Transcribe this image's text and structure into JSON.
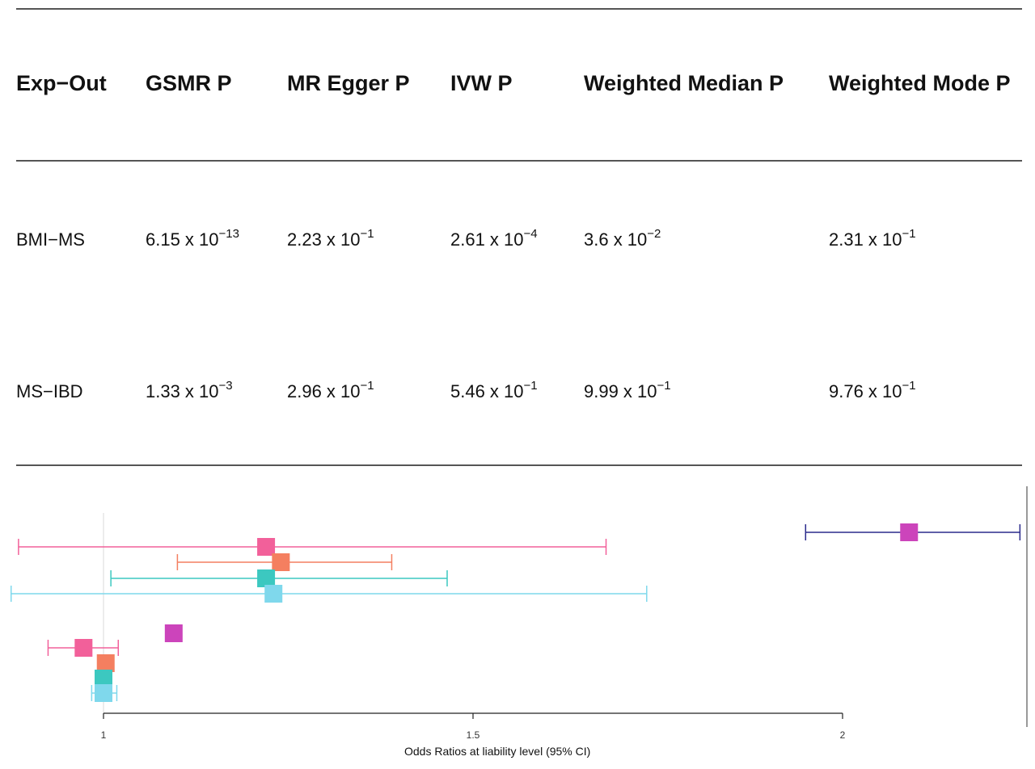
{
  "table": {
    "headers": [
      "Exp−Out",
      "GSMR P",
      "MR Egger P",
      "IVW P",
      "Weighted Median P",
      "Weighted Mode P"
    ],
    "rows": [
      {
        "label": "BMI−MS",
        "cells": [
          {
            "mant": "6.15 x 10",
            "exp": "−13"
          },
          {
            "mant": "2.23 x 10",
            "exp": "−1"
          },
          {
            "mant": "2.61 x 10",
            "exp": "−4"
          },
          {
            "mant": "3.6 x 10",
            "exp": "−2"
          },
          {
            "mant": "2.31 x 10",
            "exp": "−1"
          }
        ]
      },
      {
        "label": "MS−IBD",
        "cells": [
          {
            "mant": "1.33 x 10",
            "exp": "−3"
          },
          {
            "mant": "2.96 x 10",
            "exp": "−1"
          },
          {
            "mant": "5.46 x 10",
            "exp": "−1"
          },
          {
            "mant": "9.99 x 10",
            "exp": "−1"
          },
          {
            "mant": "9.76 x 10",
            "exp": "−1"
          }
        ]
      }
    ]
  },
  "chart_data": {
    "type": "scatter",
    "xlabel": "Odds Ratios at liability level (95% CI)",
    "xticks": [
      1,
      1.5,
      2
    ],
    "xlim": [
      0.88,
      2.25
    ],
    "reference_line": 1,
    "colors": {
      "gsmr": "#cc44bb",
      "egger": "#f2609a",
      "ivw": "#f47f60",
      "wmedian": "#3cc8c0",
      "wmode": "#7fd8ec",
      "gsmr_ci": "#2a2a8c"
    },
    "points": [
      {
        "method": "GSMR",
        "group": "BMI−MS",
        "or": 2.09,
        "lo": 1.95,
        "hi": 2.24,
        "color_key": "gsmr"
      },
      {
        "method": "MR Egger",
        "group": "BMI−MS",
        "or": 1.22,
        "lo": 0.885,
        "hi": 1.68,
        "color_key": "egger"
      },
      {
        "method": "IVW",
        "group": "BMI−MS",
        "or": 1.24,
        "lo": 1.1,
        "hi": 1.39,
        "color_key": "ivw"
      },
      {
        "method": "Weighted Median",
        "group": "BMI−MS",
        "or": 1.22,
        "lo": 1.01,
        "hi": 1.465,
        "color_key": "wmedian"
      },
      {
        "method": "Weighted Mode",
        "group": "BMI−MS",
        "or": 1.23,
        "lo": 0.875,
        "hi": 1.735,
        "color_key": "wmode"
      },
      {
        "method": "GSMR",
        "group": "MS−IBD",
        "or": 1.095,
        "lo": null,
        "hi": null,
        "color_key": "gsmr"
      },
      {
        "method": "MR Egger",
        "group": "MS−IBD",
        "or": 0.973,
        "lo": 0.925,
        "hi": 1.02,
        "color_key": "egger"
      },
      {
        "method": "IVW",
        "group": "MS−IBD",
        "or": 1.003,
        "lo": null,
        "hi": null,
        "color_key": "ivw"
      },
      {
        "method": "Weighted Median",
        "group": "MS−IBD",
        "or": 1.0,
        "lo": null,
        "hi": null,
        "color_key": "wmedian"
      },
      {
        "method": "Weighted Mode",
        "group": "MS−IBD",
        "or": 1.0,
        "lo": 0.984,
        "hi": 1.018,
        "color_key": "wmode"
      }
    ]
  }
}
